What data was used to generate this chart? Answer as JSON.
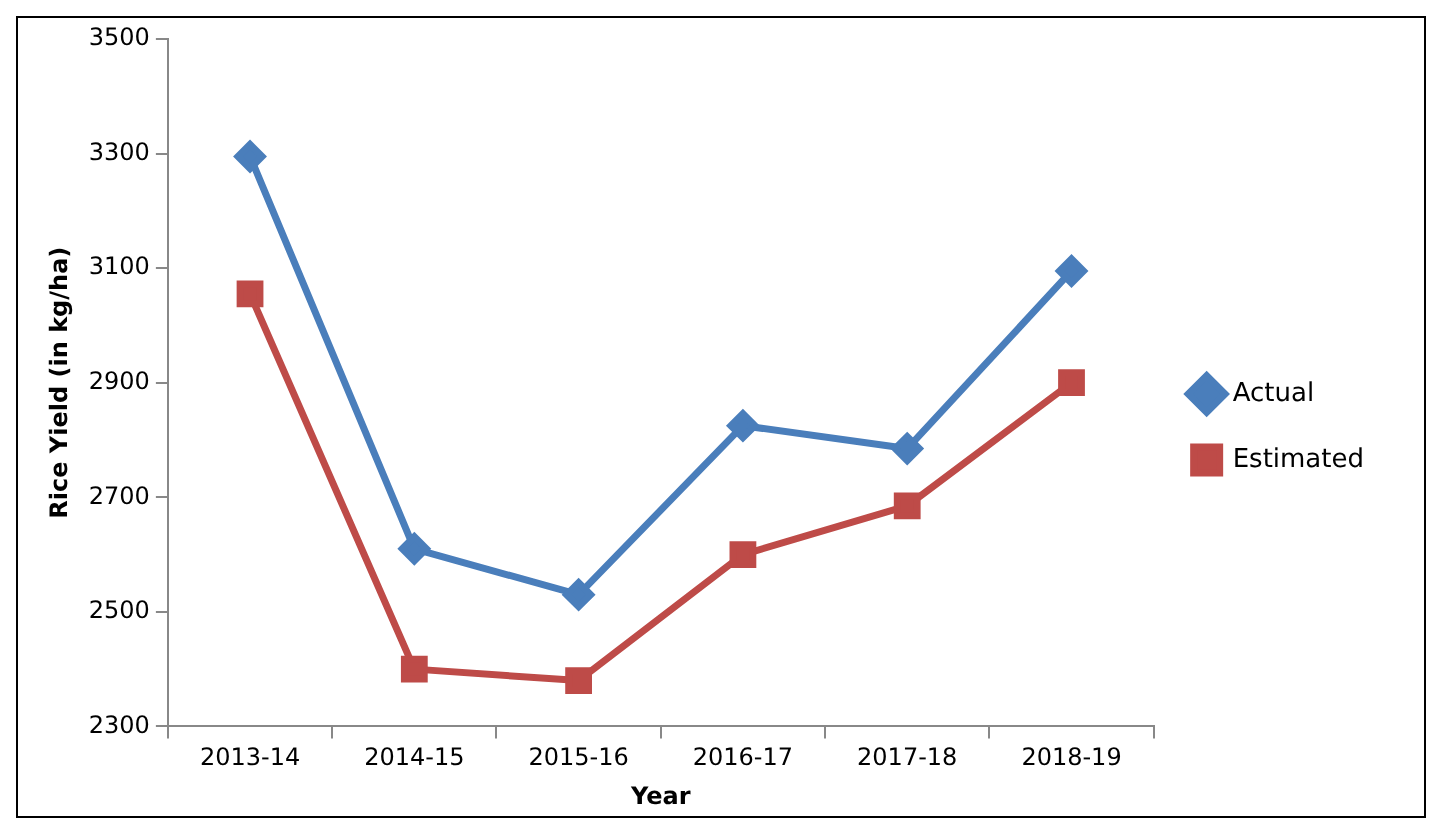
{
  "chart_data": {
    "type": "line",
    "xlabel": "Year",
    "ylabel": "Rice Yield (in kg/ha)",
    "categories": [
      "2013-14",
      "2014-15",
      "2015-16",
      "2016-17",
      "2017-18",
      "2018-19"
    ],
    "series": [
      {
        "name": "Actual",
        "color": "#4a7ebb",
        "marker": "diamond",
        "values": [
          3295,
          2610,
          2530,
          2825,
          2785,
          3095
        ]
      },
      {
        "name": "Estimated",
        "color": "#be4b48",
        "marker": "square",
        "values": [
          3055,
          2400,
          2380,
          2600,
          2685,
          2900
        ]
      }
    ],
    "ylim": [
      2300,
      3500
    ],
    "yticks": [
      2300,
      2500,
      2700,
      2900,
      3100,
      3300,
      3500
    ],
    "grid": false,
    "legend": "right"
  }
}
